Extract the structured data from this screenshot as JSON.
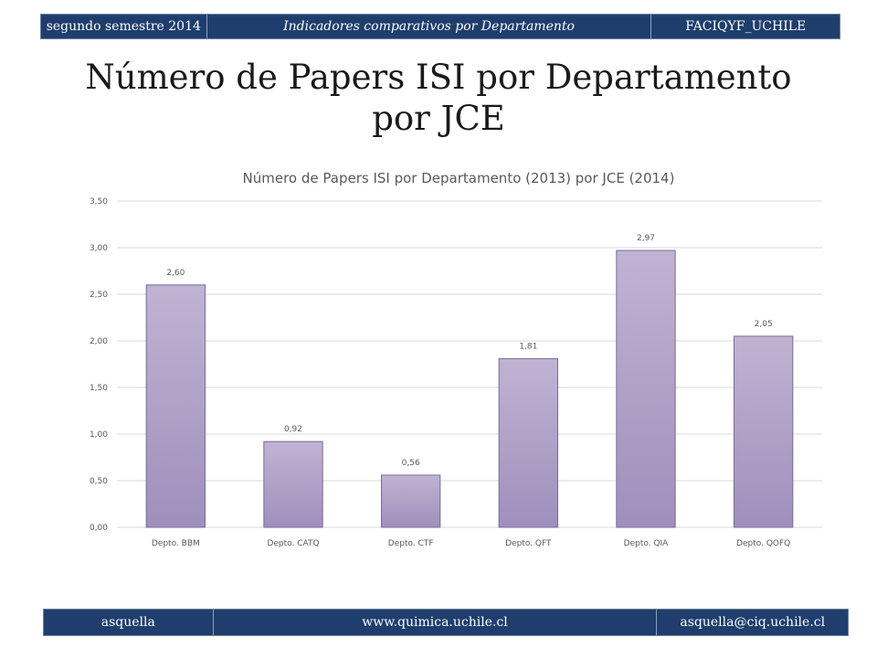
{
  "header": {
    "left": "segundo semestre 2014",
    "center": "Indicadores comparativos por Departamento",
    "right": "FACIQYF_UCHILE"
  },
  "slide_title": "Número de Papers  ISI por Departamento por JCE",
  "chart_data": {
    "type": "bar",
    "title": "Número de Papers  ISI por Departamento (2013) por JCE (2014)",
    "categories": [
      "Depto. BBM",
      "Depto. CATQ",
      "Depto. CTF",
      "Depto. QFT",
      "Depto. QIA",
      "Depto. QOFQ"
    ],
    "values": [
      2.6,
      0.92,
      0.56,
      1.81,
      2.97,
      2.05
    ],
    "data_labels": [
      "2,60",
      "0,92",
      "0,56",
      "1,81",
      "2,97",
      "2,05"
    ],
    "y_ticks": [
      0,
      0.5,
      1,
      1.5,
      2,
      2.5,
      3,
      3.5
    ],
    "y_tick_labels": [
      "0,00",
      "0,50",
      "1,00",
      "1,50",
      "2,00",
      "2,50",
      "3,00",
      "3,50"
    ],
    "ylim": [
      0,
      3.5
    ],
    "grid": true,
    "legend": "none",
    "colors": {
      "bar_top": "#c0b3d2",
      "bar_bottom": "#9f8fbc",
      "bar_stroke": "#7a6a98",
      "grid": "#d9d9d9"
    }
  },
  "footer": {
    "left": "asquella",
    "center": "www.quimica.uchile.cl",
    "right": "asquella@ciq.uchile.cl"
  }
}
